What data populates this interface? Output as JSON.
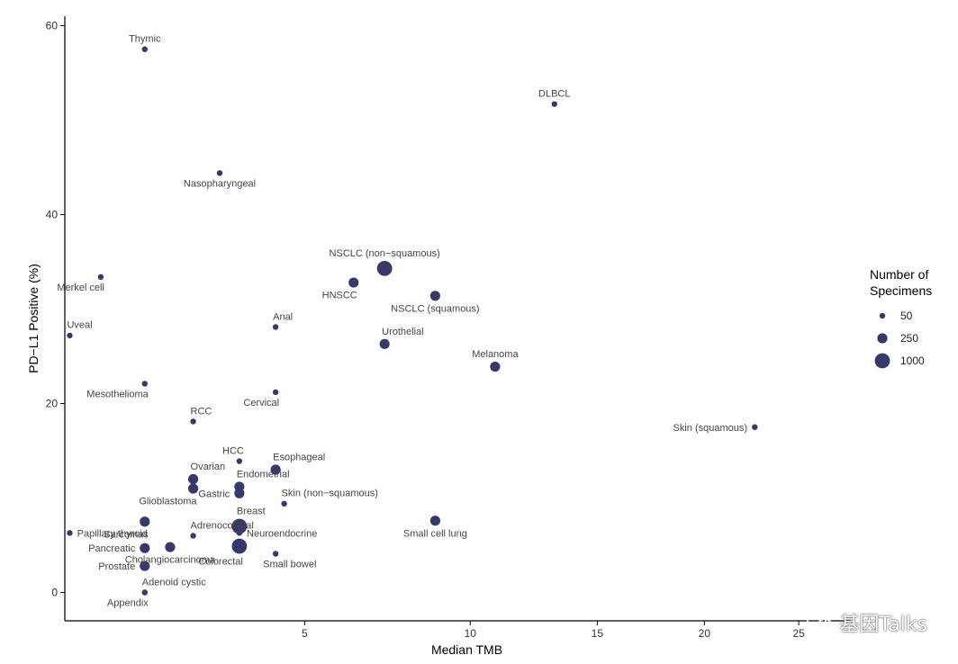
{
  "chart_data": {
    "type": "scatter",
    "title": "",
    "xlabel": "Median TMB",
    "ylabel": "PD−L1 Positive (%)",
    "x_scale": "sqrt",
    "xlim": [
      0.8,
      28
    ],
    "ylim": [
      -3,
      61
    ],
    "xticks": [
      5,
      10,
      15,
      20,
      25
    ],
    "yticks": [
      0,
      20,
      40,
      60
    ],
    "grid": false,
    "point_color": "#353a6b",
    "legend": {
      "title_line1": "Number of",
      "title_line2": "Specimens",
      "position": "right",
      "entries": [
        {
          "label": "50",
          "size": 50
        },
        {
          "label": "250",
          "size": 250
        },
        {
          "label": "1000",
          "size": 1000
        }
      ]
    },
    "points": [
      {
        "label": "Thymic",
        "x": 1.8,
        "y": 57.5,
        "size": 50,
        "label_pos": "above"
      },
      {
        "label": "DLBCL",
        "x": 13.2,
        "y": 51.7,
        "size": 50,
        "label_pos": "above"
      },
      {
        "label": "Nasopharyngeal",
        "x": 3.1,
        "y": 44.4,
        "size": 50,
        "label_pos": "below"
      },
      {
        "label": "NSCLC (non−squamous)",
        "x": 7.2,
        "y": 34.3,
        "size": 1000,
        "label_pos": "above"
      },
      {
        "label": "Merkel cell",
        "x": 1.2,
        "y": 33.4,
        "size": 50,
        "label_pos": "below-left"
      },
      {
        "label": "HNSCC",
        "x": 6.3,
        "y": 32.8,
        "size": 250,
        "label_pos": "below-left"
      },
      {
        "label": "NSCLC (squamous)",
        "x": 8.8,
        "y": 31.4,
        "size": 250,
        "label_pos": "below"
      },
      {
        "label": "Anal",
        "x": 4.3,
        "y": 28.1,
        "size": 50,
        "label_pos": "above-right"
      },
      {
        "label": "Uveal",
        "x": 0.85,
        "y": 27.2,
        "size": 50,
        "label_pos": "above-right"
      },
      {
        "label": "Urothelial",
        "x": 7.2,
        "y": 26.3,
        "size": 250,
        "label_pos": "above-right"
      },
      {
        "label": "Melanoma",
        "x": 10.9,
        "y": 23.9,
        "size": 250,
        "label_pos": "above"
      },
      {
        "label": "Mesothelioma",
        "x": 1.8,
        "y": 22.1,
        "size": 50,
        "label_pos": "below-left"
      },
      {
        "label": "Cervical",
        "x": 4.3,
        "y": 21.2,
        "size": 50,
        "label_pos": "below-left"
      },
      {
        "label": "RCC",
        "x": 2.6,
        "y": 18.1,
        "size": 50,
        "label_pos": "above-right"
      },
      {
        "label": "Skin (squamous)",
        "x": 22.6,
        "y": 17.5,
        "size": 50,
        "label_pos": "left"
      },
      {
        "label": "HCC",
        "x": 3.5,
        "y": 13.9,
        "size": 50,
        "label_pos": "above-left"
      },
      {
        "label": "Esophageal",
        "x": 4.3,
        "y": 13.0,
        "size": 250,
        "label_pos": "above-right"
      },
      {
        "label": "Ovarian",
        "x": 2.6,
        "y": 12.0,
        "size": 250,
        "label_pos": "above-right"
      },
      {
        "label": "Endometrial",
        "x": 3.5,
        "y": 11.2,
        "size": 250,
        "label_pos": "above-right"
      },
      {
        "label": "Glioblastoma",
        "x": 2.6,
        "y": 11.0,
        "size": 250,
        "label_pos": "below-left"
      },
      {
        "label": "Gastric",
        "x": 3.5,
        "y": 10.5,
        "size": 250,
        "label_pos": "left"
      },
      {
        "label": "Skin (non−squamous)",
        "x": 4.5,
        "y": 9.4,
        "size": 50,
        "label_pos": "above-right"
      },
      {
        "label": "Sarcomas",
        "x": 1.8,
        "y": 7.5,
        "size": 250,
        "label_pos": "below-left"
      },
      {
        "label": "Small cell lung",
        "x": 8.8,
        "y": 7.6,
        "size": 250,
        "label_pos": "below"
      },
      {
        "label": "Breast",
        "x": 3.5,
        "y": 7.0,
        "size": 1000,
        "label_pos": "above-right"
      },
      {
        "label": "Papillary thyroid",
        "x": 0.85,
        "y": 6.3,
        "size": 50,
        "label_pos": "right"
      },
      {
        "label": "Adrenocortical",
        "x": 2.6,
        "y": 6.0,
        "size": 50,
        "label_pos": "above-right"
      },
      {
        "label": "Neuroendocrine",
        "x": 3.5,
        "y": 6.3,
        "size": 50,
        "label_pos": "right"
      },
      {
        "label": "Colorectal",
        "x": 3.5,
        "y": 4.9,
        "size": 1000,
        "label_pos": "below-left"
      },
      {
        "label": "Cholangiocarcinoma",
        "x": 2.2,
        "y": 4.8,
        "size": 250,
        "label_pos": "below"
      },
      {
        "label": "Pancreatic",
        "x": 1.8,
        "y": 4.7,
        "size": 250,
        "label_pos": "left"
      },
      {
        "label": "Small bowel",
        "x": 4.3,
        "y": 4.1,
        "size": 50,
        "label_pos": "below-right"
      },
      {
        "label": "Prostate",
        "x": 1.8,
        "y": 2.8,
        "size": 250,
        "label_pos": "left"
      },
      {
        "label": "Adenoid cystic",
        "x": 1.8,
        "y": 0.0,
        "size": 50,
        "label_pos": "above-right"
      },
      {
        "label": "Appendix",
        "x": 1.8,
        "y": 0.0,
        "size": 50,
        "label_pos": "below-left"
      }
    ]
  },
  "watermark": {
    "text": "基因Talks",
    "icon": "wechat-icon"
  }
}
